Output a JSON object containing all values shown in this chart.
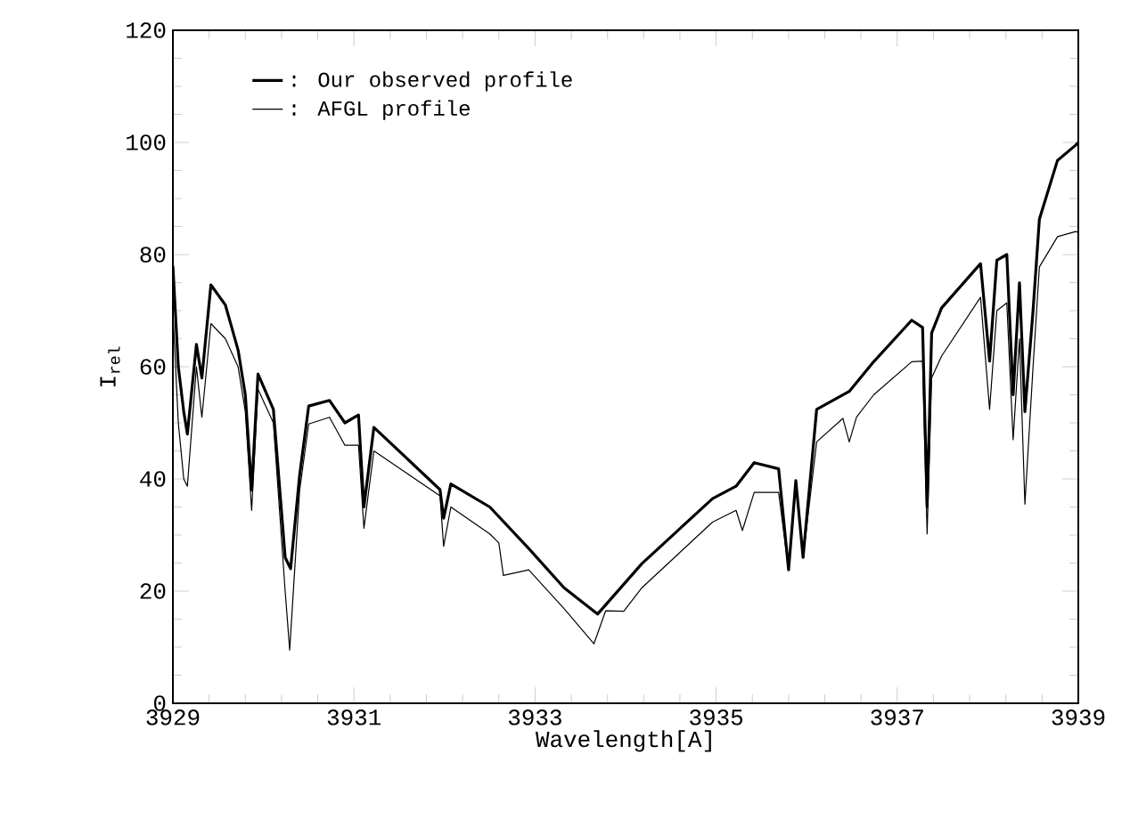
{
  "chart_data": {
    "type": "line",
    "xlabel": "Wavelength[A]",
    "ylabel": "I$_{rel}$",
    "xlim": [
      3929,
      3939
    ],
    "ylim": [
      0,
      120
    ],
    "xticks": [
      3929,
      3931,
      3933,
      3935,
      3937,
      3939
    ],
    "yticks": [
      0,
      20,
      40,
      60,
      80,
      100,
      120
    ],
    "legend": "top left",
    "grid": false,
    "series": [
      {
        "name": ": Our observed profile",
        "color": "#000000",
        "x": [
          3929.0,
          3929.06,
          3929.12,
          3929.16,
          3929.26,
          3929.32,
          3929.42,
          3929.58,
          3929.72,
          3929.8,
          3929.87,
          3929.94,
          3930.11,
          3930.24,
          3930.3,
          3930.4,
          3930.5,
          3930.73,
          3930.9,
          3931.05,
          3931.11,
          3931.22,
          3931.95,
          3931.99,
          3932.07,
          3932.5,
          3932.93,
          3933.32,
          3933.69,
          3934.18,
          3934.96,
          3935.22,
          3935.42,
          3935.69,
          3935.8,
          3935.88,
          3935.96,
          3936.11,
          3936.47,
          3936.74,
          3937.16,
          3937.28,
          3937.33,
          3937.38,
          3937.49,
          3937.92,
          3938.02,
          3938.1,
          3938.21,
          3938.28,
          3938.35,
          3938.41,
          3938.5,
          3938.57,
          3938.77,
          3938.97,
          3939.0
        ],
        "values": [
          78,
          60,
          52,
          48,
          64,
          58,
          74.6,
          71,
          63,
          55,
          38,
          58.7,
          52.4,
          26,
          24,
          40.7,
          53,
          54,
          50,
          51.4,
          35,
          49.2,
          38.1,
          33,
          39.1,
          35,
          27.6,
          20.6,
          15.9,
          24.9,
          36.5,
          38.7,
          42.9,
          41.8,
          23.8,
          39.7,
          26,
          52.4,
          55.6,
          60.9,
          68.3,
          67,
          35,
          66,
          70.5,
          78.4,
          61,
          79,
          80,
          55,
          75,
          52,
          70,
          86.3,
          96.8,
          99.5,
          100
        ]
      },
      {
        "name": ": AFGL profile",
        "color": "#000000",
        "x": [
          3929.0,
          3929.06,
          3929.12,
          3929.16,
          3929.26,
          3929.32,
          3929.42,
          3929.58,
          3929.72,
          3929.8,
          3929.87,
          3929.94,
          3930.11,
          3930.24,
          3930.29,
          3930.4,
          3930.5,
          3930.73,
          3930.9,
          3931.05,
          3931.11,
          3931.22,
          3931.95,
          3931.99,
          3932.07,
          3932.5,
          3932.6,
          3932.65,
          3932.93,
          3933.32,
          3933.65,
          3933.78,
          3933.98,
          3934.18,
          3934.96,
          3935.22,
          3935.29,
          3935.42,
          3935.69,
          3935.8,
          3935.88,
          3935.96,
          3936.11,
          3936.4,
          3936.47,
          3936.55,
          3936.74,
          3937.16,
          3937.28,
          3937.33,
          3937.38,
          3937.49,
          3937.92,
          3938.02,
          3938.1,
          3938.21,
          3938.28,
          3938.35,
          3938.41,
          3938.5,
          3938.57,
          3938.77,
          3938.97,
          3939.0
        ],
        "values": [
          70,
          50,
          40,
          38.7,
          60,
          51,
          67.7,
          65,
          60,
          52,
          34.4,
          56,
          50,
          20,
          9.5,
          38,
          49.8,
          51,
          46,
          46,
          31.2,
          45,
          37,
          28,
          35,
          30.2,
          28.6,
          22.8,
          23.8,
          16.9,
          10.6,
          16.5,
          16.4,
          20.6,
          32.3,
          34.4,
          30.8,
          37.6,
          37.6,
          23.8,
          39.7,
          26,
          46.6,
          50.8,
          46.6,
          51,
          55,
          60.9,
          61,
          30.2,
          58,
          61.9,
          72.4,
          52.4,
          70,
          71.4,
          47,
          65,
          35.5,
          60,
          77.8,
          83.2,
          84.1,
          84
        ]
      }
    ]
  }
}
